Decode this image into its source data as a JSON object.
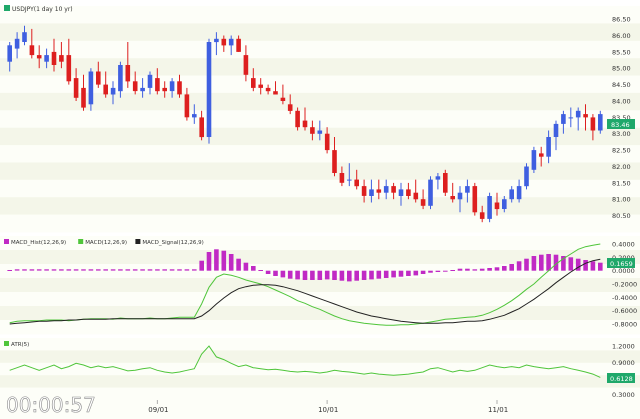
{
  "clock": "00:00:57",
  "colors": {
    "bg_band_a": "#f4f6e9",
    "bg_band_b": "#fdfef8",
    "up_candle": "#3f5fe0",
    "down_candle": "#dd1f1f",
    "hist": "#c02ac4",
    "macd_line": "#4fc53a",
    "signal_line": "#222222",
    "atr_line": "#4fc53a",
    "tag_green": "#1fa86a"
  },
  "chart_data": [
    {
      "type": "candlestick",
      "title": "USDJPY(1 day 10 yr)",
      "y_ticks": [
        "86.50",
        "86.00",
        "85.50",
        "85.00",
        "84.50",
        "84.00",
        "83.50",
        "83.00",
        "82.50",
        "82.00",
        "81.50",
        "81.00",
        "80.50"
      ],
      "ylim": [
        80.0,
        86.9
      ],
      "last_price": "83.46",
      "x_ticks": [
        {
          "label": "09/01",
          "index": 20
        },
        {
          "label": "10/01",
          "index": 43
        },
        {
          "label": "11/01",
          "index": 66
        }
      ],
      "n_bars": 81,
      "candles": [
        [
          85.2,
          85.8,
          84.9,
          85.7
        ],
        [
          85.6,
          86.1,
          85.3,
          85.9
        ],
        [
          85.8,
          86.3,
          85.7,
          86.1
        ],
        [
          85.7,
          86.2,
          85.3,
          85.4
        ],
        [
          85.4,
          85.7,
          85.0,
          85.3
        ],
        [
          85.2,
          85.6,
          85.0,
          85.4
        ],
        [
          85.5,
          85.9,
          84.9,
          85.1
        ],
        [
          85.4,
          85.8,
          85.0,
          85.2
        ],
        [
          85.4,
          85.9,
          84.5,
          84.6
        ],
        [
          84.7,
          85.0,
          84.0,
          84.1
        ],
        [
          84.4,
          84.8,
          83.7,
          83.8
        ],
        [
          83.9,
          85.0,
          83.7,
          84.9
        ],
        [
          84.9,
          85.2,
          84.4,
          84.5
        ],
        [
          84.5,
          84.9,
          84.1,
          84.2
        ],
        [
          84.2,
          84.6,
          83.9,
          84.4
        ],
        [
          84.3,
          85.2,
          84.1,
          85.1
        ],
        [
          85.1,
          85.8,
          84.4,
          84.6
        ],
        [
          84.6,
          84.9,
          84.2,
          84.3
        ],
        [
          84.3,
          84.7,
          84.1,
          84.4
        ],
        [
          84.4,
          84.9,
          84.2,
          84.8
        ],
        [
          84.7,
          85.0,
          84.2,
          84.3
        ],
        [
          84.4,
          84.6,
          84.1,
          84.3
        ],
        [
          84.3,
          84.7,
          84.1,
          84.6
        ],
        [
          84.6,
          84.8,
          84.1,
          84.2
        ],
        [
          84.2,
          84.4,
          83.4,
          83.5
        ],
        [
          83.5,
          83.9,
          83.3,
          83.6
        ],
        [
          83.5,
          83.7,
          82.8,
          82.9
        ],
        [
          82.9,
          85.9,
          82.7,
          85.8
        ],
        [
          85.8,
          86.1,
          85.4,
          85.9
        ],
        [
          85.9,
          86.0,
          85.5,
          85.7
        ],
        [
          85.7,
          86.0,
          85.4,
          85.9
        ],
        [
          85.9,
          86.0,
          85.5,
          85.5
        ],
        [
          85.4,
          85.7,
          84.6,
          84.8
        ],
        [
          84.7,
          85.0,
          84.3,
          84.4
        ],
        [
          84.5,
          84.7,
          84.2,
          84.4
        ],
        [
          84.4,
          84.5,
          84.2,
          84.3
        ],
        [
          84.3,
          84.6,
          84.2,
          84.2
        ],
        [
          84.1,
          84.5,
          83.9,
          84.0
        ],
        [
          83.9,
          84.2,
          83.6,
          83.7
        ],
        [
          83.7,
          83.8,
          83.1,
          83.2
        ],
        [
          83.4,
          83.8,
          83.1,
          83.2
        ],
        [
          83.2,
          83.4,
          82.8,
          83.0
        ],
        [
          83.0,
          83.4,
          82.8,
          83.1
        ],
        [
          83.0,
          83.2,
          82.4,
          82.5
        ],
        [
          82.5,
          82.9,
          81.7,
          81.8
        ],
        [
          81.8,
          82.0,
          81.4,
          81.5
        ],
        [
          81.6,
          82.1,
          81.4,
          81.6
        ],
        [
          81.6,
          81.9,
          81.3,
          81.4
        ],
        [
          81.4,
          81.6,
          80.9,
          81.1
        ],
        [
          81.1,
          81.6,
          80.9,
          81.3
        ],
        [
          81.3,
          81.6,
          81.0,
          81.2
        ],
        [
          81.2,
          81.6,
          81.0,
          81.4
        ],
        [
          81.4,
          81.5,
          81.0,
          81.2
        ],
        [
          81.1,
          81.5,
          80.8,
          81.3
        ],
        [
          81.3,
          81.5,
          81.0,
          81.1
        ],
        [
          81.2,
          81.6,
          80.9,
          81.0
        ],
        [
          81.0,
          81.3,
          80.7,
          80.8
        ],
        [
          80.8,
          81.7,
          80.7,
          81.6
        ],
        [
          81.6,
          81.8,
          81.3,
          81.7
        ],
        [
          81.8,
          81.9,
          81.1,
          81.2
        ],
        [
          81.1,
          81.5,
          80.9,
          81.0
        ],
        [
          81.0,
          81.4,
          80.6,
          81.2
        ],
        [
          81.2,
          81.6,
          80.9,
          81.4
        ],
        [
          81.4,
          81.5,
          80.5,
          80.6
        ],
        [
          80.6,
          80.8,
          80.3,
          80.4
        ],
        [
          80.4,
          81.2,
          80.3,
          81.1
        ],
        [
          80.9,
          81.2,
          80.5,
          80.7
        ],
        [
          80.7,
          81.1,
          80.6,
          81.0
        ],
        [
          81.0,
          81.4,
          80.9,
          81.3
        ],
        [
          81.0,
          81.6,
          80.9,
          81.4
        ],
        [
          81.4,
          82.1,
          81.3,
          82.0
        ],
        [
          81.9,
          82.6,
          81.8,
          82.5
        ],
        [
          82.4,
          82.6,
          82.0,
          82.3
        ],
        [
          82.3,
          83.1,
          82.1,
          82.9
        ],
        [
          82.9,
          83.4,
          82.5,
          83.3
        ],
        [
          83.3,
          83.7,
          83.0,
          83.6
        ],
        [
          83.5,
          83.8,
          83.2,
          83.5
        ],
        [
          83.5,
          83.8,
          83.1,
          83.7
        ],
        [
          83.6,
          83.9,
          83.1,
          83.5
        ],
        [
          83.5,
          83.6,
          82.8,
          83.1
        ],
        [
          83.1,
          83.7,
          83.0,
          83.6
        ]
      ]
    },
    {
      "type": "bar+line",
      "legend": [
        "MACD_Hist(12,26,9)",
        "MACD(12,26,9)",
        "MACD_Signal(12,26,9)"
      ],
      "y_ticks": [
        "0.4000",
        "0.2000",
        "0.0000",
        "-0.2000",
        "-0.4000",
        "-0.6000",
        "-0.8000"
      ],
      "ylim": [
        -0.95,
        0.52
      ],
      "last_signal": "0.1659",
      "hist": [
        0.01,
        0.02,
        0.02,
        0.02,
        0.02,
        0.02,
        0.02,
        0.02,
        0.02,
        0.02,
        0.02,
        0.02,
        0.02,
        0.02,
        0.02,
        0.02,
        0.02,
        0.02,
        0.02,
        0.02,
        0.02,
        0.02,
        0.02,
        0.02,
        0.02,
        0.02,
        0.15,
        0.28,
        0.32,
        0.3,
        0.25,
        0.18,
        0.12,
        0.07,
        0.01,
        -0.05,
        -0.08,
        -0.1,
        -0.12,
        -0.13,
        -0.14,
        -0.14,
        -0.14,
        -0.13,
        -0.14,
        -0.15,
        -0.16,
        -0.15,
        -0.14,
        -0.13,
        -0.12,
        -0.11,
        -0.1,
        -0.09,
        -0.08,
        -0.07,
        -0.05,
        -0.03,
        -0.02,
        -0.01,
        0.01,
        0.03,
        0.03,
        0.02,
        0.03,
        0.04,
        0.05,
        0.07,
        0.1,
        0.14,
        0.18,
        0.22,
        0.24,
        0.25,
        0.24,
        0.22,
        0.2,
        0.18,
        0.16,
        0.14,
        0.12
      ],
      "macd": [
        -0.78,
        -0.76,
        -0.75,
        -0.75,
        -0.75,
        -0.74,
        -0.74,
        -0.74,
        -0.75,
        -0.74,
        -0.73,
        -0.72,
        -0.72,
        -0.72,
        -0.73,
        -0.71,
        -0.72,
        -0.72,
        -0.72,
        -0.71,
        -0.72,
        -0.72,
        -0.71,
        -0.7,
        -0.7,
        -0.7,
        -0.5,
        -0.25,
        -0.1,
        -0.05,
        -0.07,
        -0.1,
        -0.14,
        -0.17,
        -0.2,
        -0.24,
        -0.29,
        -0.34,
        -0.39,
        -0.45,
        -0.49,
        -0.54,
        -0.58,
        -0.63,
        -0.68,
        -0.72,
        -0.75,
        -0.77,
        -0.79,
        -0.8,
        -0.81,
        -0.82,
        -0.82,
        -0.81,
        -0.81,
        -0.8,
        -0.79,
        -0.77,
        -0.75,
        -0.73,
        -0.72,
        -0.71,
        -0.7,
        -0.69,
        -0.67,
        -0.63,
        -0.58,
        -0.52,
        -0.45,
        -0.37,
        -0.28,
        -0.2,
        -0.1,
        0.0,
        0.1,
        0.18,
        0.25,
        0.32,
        0.36,
        0.38,
        0.4
      ],
      "signal": [
        -0.8,
        -0.79,
        -0.78,
        -0.77,
        -0.76,
        -0.76,
        -0.75,
        -0.75,
        -0.74,
        -0.74,
        -0.73,
        -0.73,
        -0.73,
        -0.73,
        -0.72,
        -0.72,
        -0.72,
        -0.72,
        -0.72,
        -0.72,
        -0.72,
        -0.72,
        -0.72,
        -0.72,
        -0.72,
        -0.72,
        -0.68,
        -0.6,
        -0.5,
        -0.41,
        -0.33,
        -0.27,
        -0.24,
        -0.22,
        -0.21,
        -0.21,
        -0.22,
        -0.24,
        -0.27,
        -0.3,
        -0.34,
        -0.38,
        -0.42,
        -0.46,
        -0.5,
        -0.54,
        -0.58,
        -0.62,
        -0.65,
        -0.68,
        -0.7,
        -0.72,
        -0.74,
        -0.76,
        -0.77,
        -0.78,
        -0.79,
        -0.79,
        -0.79,
        -0.78,
        -0.78,
        -0.77,
        -0.76,
        -0.76,
        -0.75,
        -0.73,
        -0.7,
        -0.67,
        -0.62,
        -0.57,
        -0.5,
        -0.43,
        -0.35,
        -0.27,
        -0.18,
        -0.1,
        -0.02,
        0.05,
        0.11,
        0.15,
        0.17
      ]
    },
    {
      "type": "line",
      "legend": [
        "ATR(5)"
      ],
      "y_ticks": [
        "1.2000",
        "0.9000",
        "0.6000",
        "0.3000"
      ],
      "ylim": [
        0.2,
        1.35
      ],
      "last_value": "0.6128",
      "values": [
        0.75,
        0.8,
        0.85,
        0.8,
        0.75,
        0.8,
        0.85,
        0.78,
        0.82,
        0.88,
        0.85,
        0.8,
        0.83,
        0.8,
        0.82,
        0.78,
        0.74,
        0.75,
        0.78,
        0.8,
        0.75,
        0.72,
        0.7,
        0.72,
        0.75,
        0.78,
        1.05,
        1.2,
        1.0,
        0.95,
        0.88,
        0.82,
        0.85,
        0.8,
        0.78,
        0.76,
        0.77,
        0.75,
        0.73,
        0.72,
        0.73,
        0.72,
        0.7,
        0.72,
        0.75,
        0.73,
        0.72,
        0.7,
        0.68,
        0.7,
        0.68,
        0.67,
        0.66,
        0.67,
        0.68,
        0.7,
        0.72,
        0.78,
        0.8,
        0.76,
        0.72,
        0.75,
        0.73,
        0.75,
        0.8,
        0.85,
        0.82,
        0.8,
        0.82,
        0.8,
        0.85,
        0.82,
        0.8,
        0.78,
        0.8,
        0.82,
        0.78,
        0.75,
        0.72,
        0.68,
        0.62
      ]
    }
  ]
}
